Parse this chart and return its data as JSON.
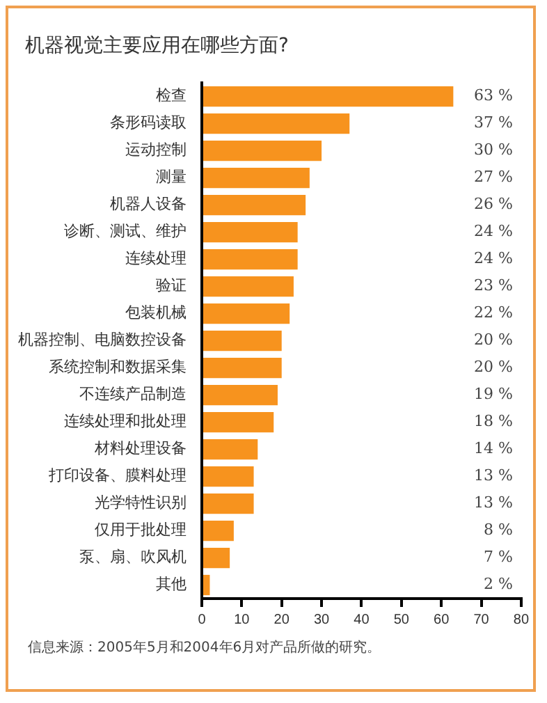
{
  "chart_data": {
    "type": "bar",
    "orientation": "horizontal",
    "title": "机器视觉主要应用在哪些方面?",
    "categories": [
      "检查",
      "条形码读取",
      "运动控制",
      "测量",
      "机器人设备",
      "诊断、测试、维护",
      "连续处理",
      "验证",
      "包装机械",
      "机器控制、电脑数控设备",
      "系统控制和数据采集",
      "不连续产品制造",
      "连续处理和批处理",
      "材料处理设备",
      "打印设备、膜料处理",
      "光学特性识别",
      "仅用于批处理",
      "泵、扇、吹风机",
      "其他"
    ],
    "values": [
      63,
      37,
      30,
      27,
      26,
      24,
      24,
      23,
      22,
      20,
      20,
      19,
      18,
      14,
      13,
      13,
      8,
      7,
      2
    ],
    "value_labels": [
      "63 %",
      "37 %",
      "30 %",
      "27 %",
      "26 %",
      "24 %",
      "24 %",
      "23 %",
      "22 %",
      "20 %",
      "20 %",
      "19 %",
      "18 %",
      "14 %",
      "13 %",
      "13 %",
      "8 %",
      "7 %",
      "2 %"
    ],
    "color": "#f7931e",
    "xlim": [
      0,
      80
    ],
    "xticks": [
      0,
      10,
      20,
      30,
      40,
      50,
      60,
      70,
      80
    ],
    "grid": false,
    "legend": false,
    "annotations": [
      "信息来源：2005年5月和2004年6月对产品所做的研究。"
    ]
  }
}
